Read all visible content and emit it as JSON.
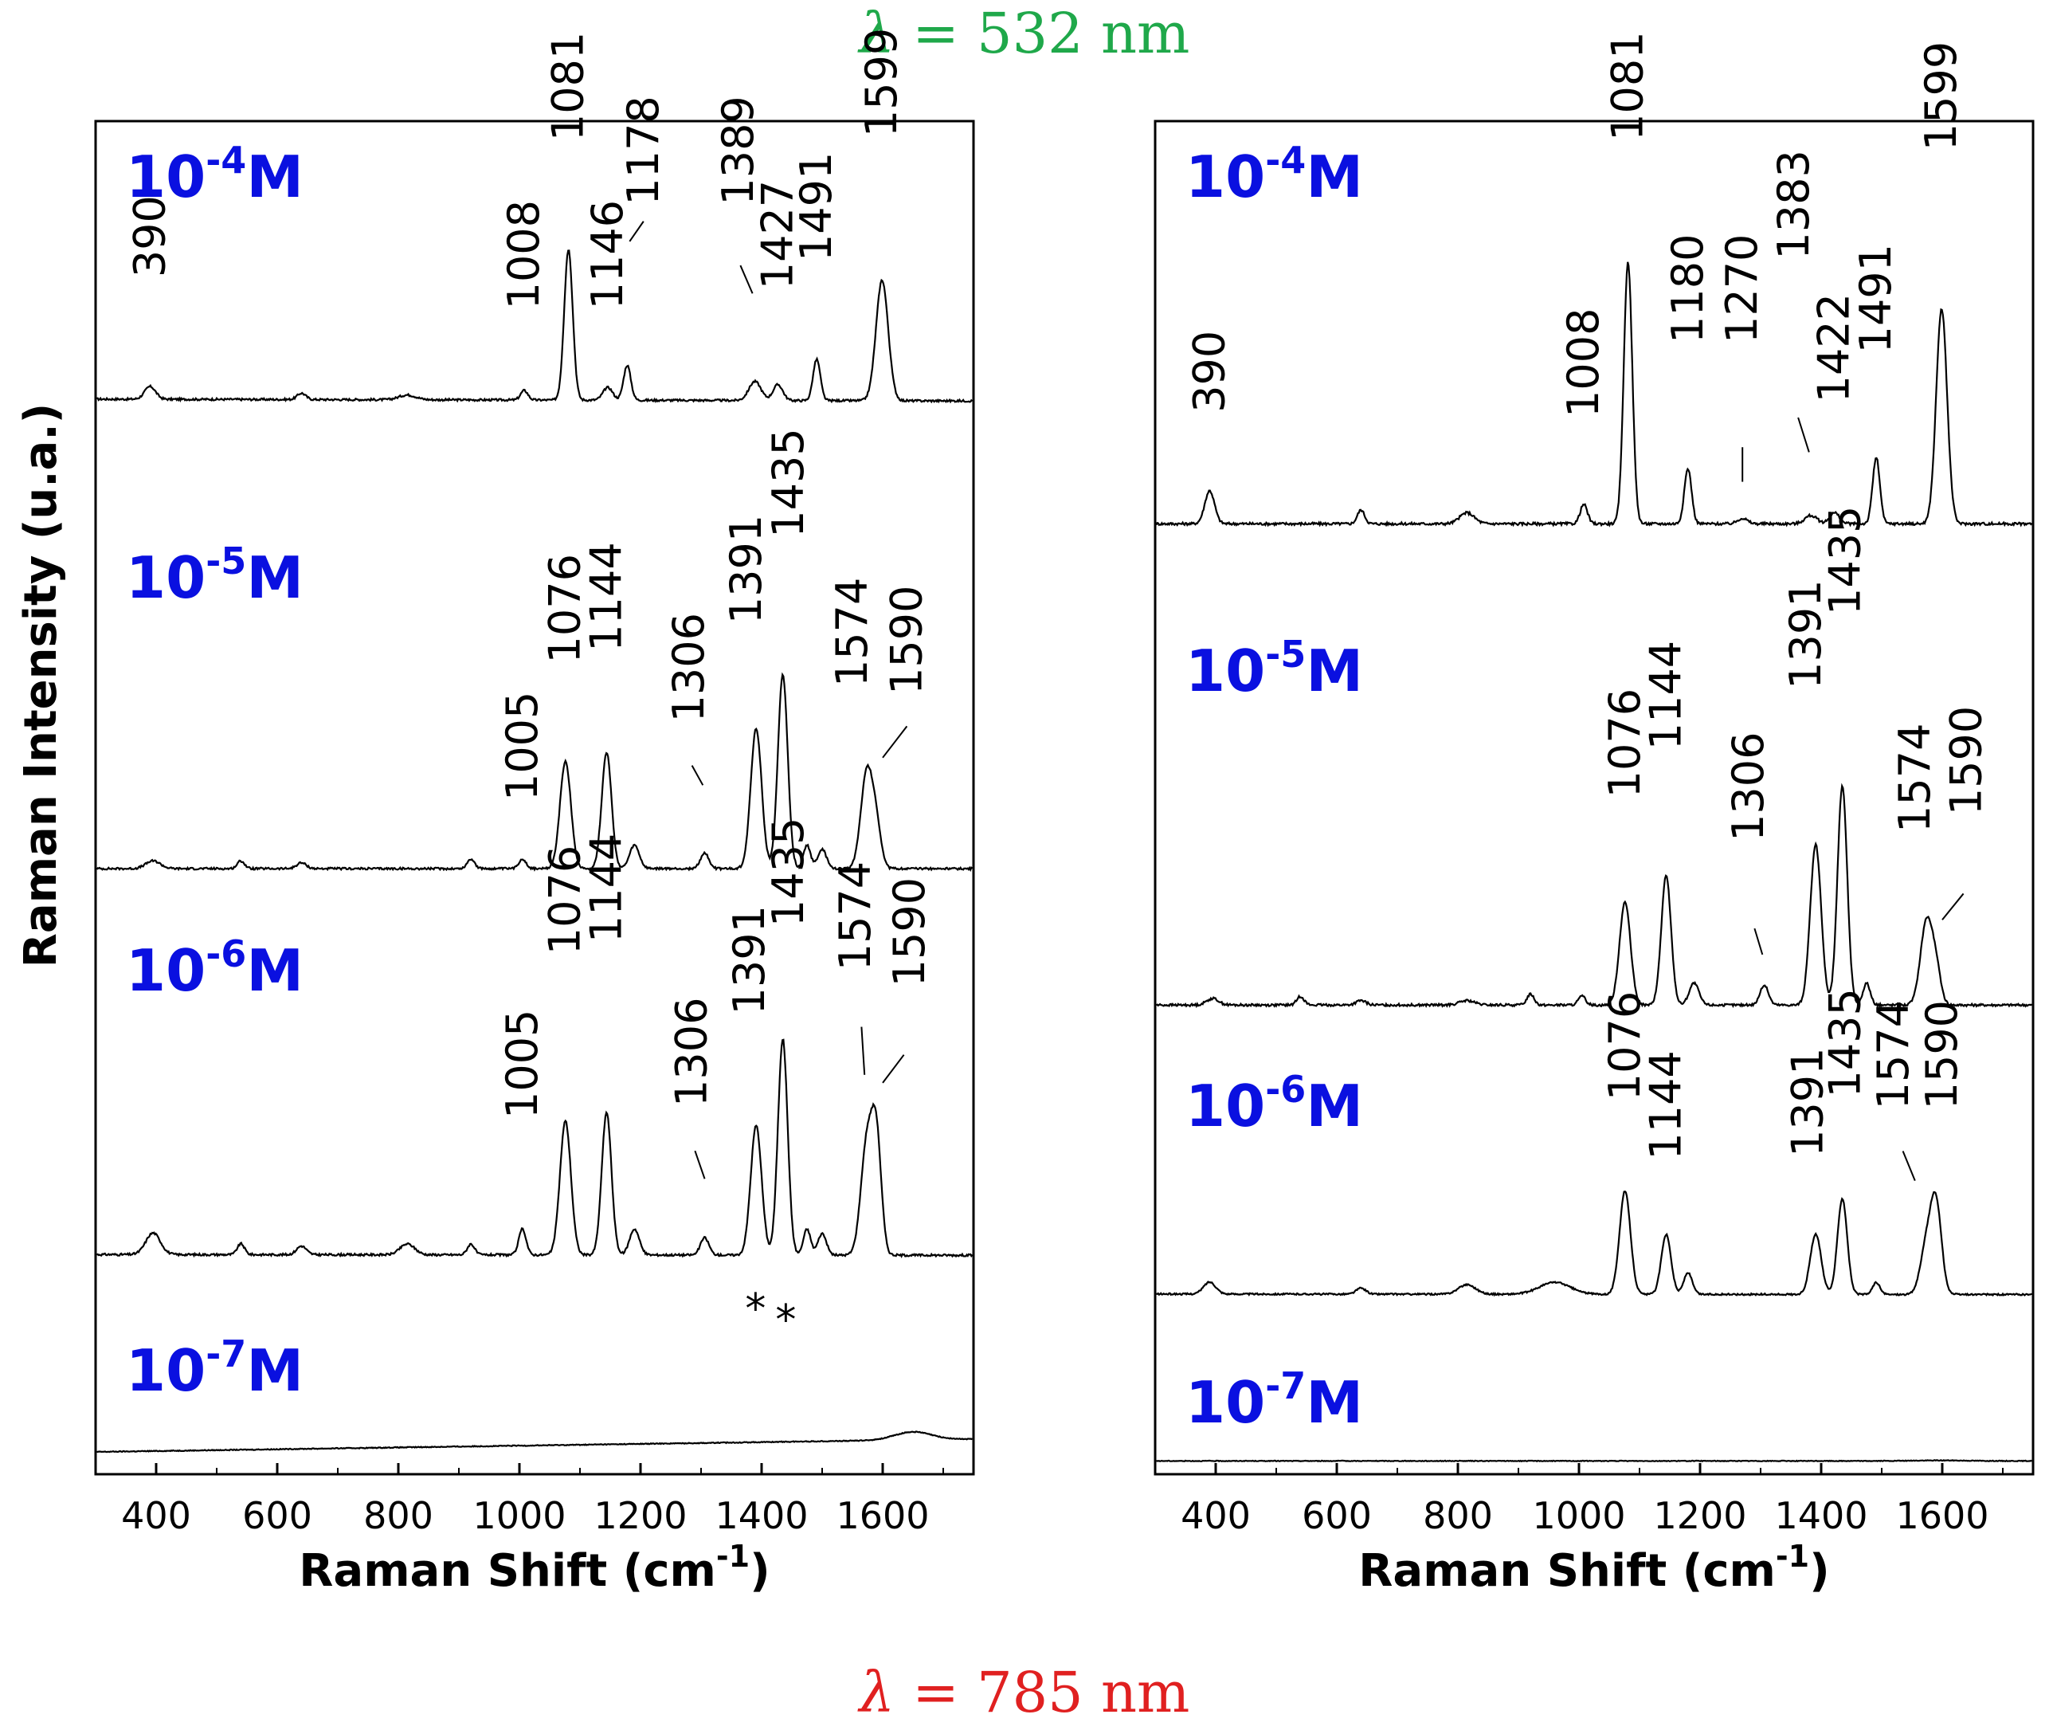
{
  "figure": {
    "top_label": {
      "lambda": "λ",
      "rest": " = 532 nm",
      "color": "#1fa84a"
    },
    "bottom_label": {
      "lambda": "λ",
      "rest": " = 785 nm",
      "color": "#e02020"
    },
    "ylabel": "Raman Intensity (u.a.)",
    "conc_color": "#0a10e0"
  },
  "chart_data": [
    {
      "type": "line",
      "panel": "left",
      "xlabel": "Raman Shift (cm",
      "xlabel_sup": "-1",
      "xlabel_end": ")",
      "xlim": [
        300,
        1750
      ],
      "xticks": [
        400,
        600,
        800,
        1000,
        1200,
        1400,
        1600
      ],
      "series": [
        {
          "label_base": "10",
          "label_exp": "-4",
          "label_unit": "M",
          "baseline": 0.56,
          "scale": 0.44,
          "slope": 0.05,
          "peaks": [
            [
              390,
              0.08,
              9
            ],
            [
              640,
              0.04,
              7
            ],
            [
              815,
              0.03,
              14
            ],
            [
              1008,
              0.06,
              6
            ],
            [
              1081,
              0.95,
              7
            ],
            [
              1146,
              0.08,
              8
            ],
            [
              1178,
              0.22,
              6
            ],
            [
              1389,
              0.12,
              10
            ],
            [
              1427,
              0.1,
              8
            ],
            [
              1491,
              0.26,
              6
            ],
            [
              1599,
              0.76,
              10
            ]
          ],
          "labels": [
            {
              "text": "390",
              "x": 390,
              "y": 0.61,
              "lead": []
            },
            {
              "text": "1008",
              "x": 1008,
              "y": 0.53,
              "lead": []
            },
            {
              "text": "1081",
              "x": 1081,
              "y": 0.95,
              "lead": []
            },
            {
              "text": "1146",
              "x": 1146,
              "y": 0.53,
              "lead": []
            },
            {
              "text": "1178",
              "x": 1205,
              "y": 0.79,
              "lead": [
                [
                  1205,
                  0.75
                ],
                [
                  1182,
                  0.7
                ]
              ]
            },
            {
              "text": "1389",
              "x": 1362,
              "y": 0.79,
              "lead": [
                [
                  1365,
                  0.64
                ],
                [
                  1385,
                  0.57
                ]
              ]
            },
            {
              "text": "1427",
              "x": 1427,
              "y": 0.58,
              "lead": []
            },
            {
              "text": "1491",
              "x": 1491,
              "y": 0.65,
              "lead": []
            },
            {
              "text": "1599",
              "x": 1599,
              "y": 0.96,
              "lead": []
            }
          ]
        },
        {
          "label_base": "10",
          "label_exp": "-5",
          "label_unit": "M",
          "baseline": 0.15,
          "scale": 0.55,
          "slope": 0.0,
          "peaks": [
            [
              395,
              0.04,
              12
            ],
            [
              540,
              0.04,
              6
            ],
            [
              640,
              0.03,
              8
            ],
            [
              920,
              0.05,
              6
            ],
            [
              1005,
              0.05,
              6
            ],
            [
              1076,
              0.55,
              9
            ],
            [
              1144,
              0.6,
              8
            ],
            [
              1190,
              0.12,
              8
            ],
            [
              1306,
              0.08,
              7
            ],
            [
              1391,
              0.72,
              9
            ],
            [
              1435,
              1.0,
              8
            ],
            [
              1475,
              0.12,
              6
            ],
            [
              1500,
              0.1,
              7
            ],
            [
              1574,
              0.5,
              10
            ],
            [
              1590,
              0.18,
              8
            ]
          ],
          "labels": [
            {
              "text": "1005",
              "x": 1005,
              "y": 0.29,
              "lead": []
            },
            {
              "text": "1076",
              "x": 1076,
              "y": 0.64,
              "lead": []
            },
            {
              "text": "1144",
              "x": 1144,
              "y": 0.67,
              "lead": []
            },
            {
              "text": "1306",
              "x": 1280,
              "y": 0.49,
              "lead": [
                [
                  1285,
                  0.38
                ],
                [
                  1303,
                  0.33
                ]
              ]
            },
            {
              "text": "1391",
              "x": 1375,
              "y": 0.74,
              "lead": []
            },
            {
              "text": "1435",
              "x": 1445,
              "y": 0.96,
              "lead": []
            },
            {
              "text": "1574",
              "x": 1550,
              "y": 0.58,
              "lead": []
            },
            {
              "text": "1590",
              "x": 1640,
              "y": 0.56,
              "lead": [
                [
                  1640,
                  0.48
                ],
                [
                  1600,
                  0.4
                ]
              ]
            }
          ]
        },
        {
          "label_base": "10",
          "label_exp": "-6",
          "label_unit": "M",
          "baseline": 0.22,
          "scale": 0.6,
          "slope": 0.02,
          "peaks": [
            [
              395,
              0.1,
              12
            ],
            [
              540,
              0.05,
              6
            ],
            [
              640,
              0.04,
              8
            ],
            [
              815,
              0.05,
              12
            ],
            [
              920,
              0.05,
              6
            ],
            [
              1005,
              0.12,
              6
            ],
            [
              1076,
              0.62,
              9
            ],
            [
              1144,
              0.66,
              8
            ],
            [
              1190,
              0.12,
              8
            ],
            [
              1306,
              0.08,
              7
            ],
            [
              1391,
              0.6,
              9
            ],
            [
              1435,
              1.0,
              8
            ],
            [
              1475,
              0.12,
              6
            ],
            [
              1500,
              0.1,
              7
            ],
            [
              1574,
              0.52,
              10
            ],
            [
              1590,
              0.5,
              8
            ]
          ],
          "labels": [
            {
              "text": "1005",
              "x": 1005,
              "y": 0.49,
              "lead": []
            },
            {
              "text": "1076",
              "x": 1076,
              "y": 0.9,
              "lead": []
            },
            {
              "text": "1144",
              "x": 1144,
              "y": 0.93,
              "lead": []
            },
            {
              "text": "1306",
              "x": 1285,
              "y": 0.52,
              "lead": [
                [
                  1290,
                  0.41
                ],
                [
                  1306,
                  0.34
                ]
              ]
            },
            {
              "text": "1391",
              "x": 1380,
              "y": 0.75,
              "lead": []
            },
            {
              "text": "1435",
              "x": 1445,
              "y": 0.97,
              "lead": []
            },
            {
              "text": "1574",
              "x": 1555,
              "y": 0.86,
              "lead": [
                [
                  1565,
                  0.72
                ],
                [
                  1570,
                  0.6
                ]
              ]
            },
            {
              "text": "1590",
              "x": 1645,
              "y": 0.82,
              "lead": [
                [
                  1635,
                  0.65
                ],
                [
                  1600,
                  0.58
                ]
              ]
            }
          ]
        },
        {
          "label_base": "10",
          "label_exp": "-7",
          "label_unit": "M",
          "baseline": 0.38,
          "scale": 0.2,
          "slope": -0.9,
          "peaks": [
            [
              1650,
              0.28,
              30
            ]
          ],
          "labels": [
            {
              "text": "*",
              "x": 1390,
              "y": 0.95,
              "lead": []
            },
            {
              "text": "*",
              "x": 1440,
              "y": 0.88,
              "lead": []
            }
          ]
        }
      ]
    },
    {
      "type": "line",
      "panel": "right",
      "xlabel": "Raman Shift (cm",
      "xlabel_sup": "-1",
      "xlabel_end": ")",
      "xlim": [
        300,
        1750
      ],
      "xticks": [
        400,
        600,
        800,
        1000,
        1200,
        1400,
        1600
      ],
      "series": [
        {
          "label_base": "10",
          "label_exp": "-4",
          "label_unit": "M",
          "baseline": 0.3,
          "scale": 0.62,
          "slope": 0.0,
          "peaks": [
            [
              390,
              0.12,
              8
            ],
            [
              640,
              0.05,
              6
            ],
            [
              815,
              0.04,
              12
            ],
            [
              1008,
              0.07,
              6
            ],
            [
              1081,
              0.95,
              7
            ],
            [
              1180,
              0.2,
              6
            ],
            [
              1270,
              0.02,
              8
            ],
            [
              1383,
              0.03,
              10
            ],
            [
              1422,
              0.04,
              8
            ],
            [
              1491,
              0.24,
              6
            ],
            [
              1599,
              0.78,
              9
            ]
          ],
          "labels": [
            {
              "text": "390",
              "x": 390,
              "y": 0.41,
              "lead": []
            },
            {
              "text": "1008",
              "x": 1008,
              "y": 0.4,
              "lead": []
            },
            {
              "text": "1081",
              "x": 1081,
              "y": 0.96,
              "lead": []
            },
            {
              "text": "1180",
              "x": 1180,
              "y": 0.55,
              "lead": []
            },
            {
              "text": "1270",
              "x": 1270,
              "y": 0.55,
              "lead": [
                [
                  1270,
                  0.34
                ],
                [
                  1270,
                  0.27
                ]
              ]
            },
            {
              "text": "1383",
              "x": 1355,
              "y": 0.72,
              "lead": [
                [
                  1362,
                  0.4
                ],
                [
                  1380,
                  0.33
                ]
              ]
            },
            {
              "text": "1422",
              "x": 1422,
              "y": 0.43,
              "lead": []
            },
            {
              "text": "1491",
              "x": 1491,
              "y": 0.53,
              "lead": []
            },
            {
              "text": "1599",
              "x": 1599,
              "y": 0.94,
              "lead": []
            }
          ]
        },
        {
          "label_base": "10",
          "label_exp": "-5",
          "label_unit": "M",
          "baseline": 0.12,
          "scale": 0.56,
          "slope": 0.0,
          "peaks": [
            [
              395,
              0.03,
              10
            ],
            [
              540,
              0.04,
              6
            ],
            [
              640,
              0.02,
              8
            ],
            [
              815,
              0.02,
              12
            ],
            [
              920,
              0.05,
              6
            ],
            [
              1005,
              0.04,
              6
            ],
            [
              1076,
              0.47,
              9
            ],
            [
              1144,
              0.59,
              8
            ],
            [
              1190,
              0.1,
              8
            ],
            [
              1306,
              0.09,
              7
            ],
            [
              1391,
              0.73,
              9
            ],
            [
              1435,
              1.0,
              8
            ],
            [
              1475,
              0.1,
              6
            ],
            [
              1574,
              0.38,
              10
            ],
            [
              1590,
              0.14,
              8
            ]
          ],
          "labels": [
            {
              "text": "1076",
              "x": 1076,
              "y": 0.58,
              "lead": []
            },
            {
              "text": "1144",
              "x": 1144,
              "y": 0.69,
              "lead": []
            },
            {
              "text": "1306",
              "x": 1280,
              "y": 0.48,
              "lead": [
                [
                  1290,
                  0.28
                ],
                [
                  1303,
                  0.22
                ]
              ]
            },
            {
              "text": "1391",
              "x": 1375,
              "y": 0.83,
              "lead": []
            },
            {
              "text": "1435",
              "x": 1440,
              "y": 1.0,
              "lead": []
            },
            {
              "text": "1574",
              "x": 1555,
              "y": 0.5,
              "lead": []
            },
            {
              "text": "1590",
              "x": 1640,
              "y": 0.54,
              "lead": [
                [
                  1635,
                  0.36
                ],
                [
                  1600,
                  0.3
                ]
              ]
            }
          ]
        },
        {
          "label_base": "10",
          "label_exp": "-6",
          "label_unit": "M",
          "baseline": 0.28,
          "scale": 0.45,
          "slope": 0.02,
          "peaks": [
            [
              390,
              0.1,
              10
            ],
            [
              640,
              0.05,
              8
            ],
            [
              815,
              0.08,
              14
            ],
            [
              960,
              0.1,
              25
            ],
            [
              1076,
              0.86,
              9
            ],
            [
              1144,
              0.5,
              8
            ],
            [
              1180,
              0.18,
              7
            ],
            [
              1391,
              0.5,
              9
            ],
            [
              1435,
              0.8,
              8
            ],
            [
              1491,
              0.1,
              6
            ],
            [
              1574,
              0.4,
              10
            ],
            [
              1590,
              0.72,
              9
            ]
          ],
          "labels": [
            {
              "text": "1076",
              "x": 1076,
              "y": 0.83,
              "lead": []
            },
            {
              "text": "1144",
              "x": 1144,
              "y": 0.63,
              "lead": []
            },
            {
              "text": "1391",
              "x": 1378,
              "y": 0.64,
              "lead": []
            },
            {
              "text": "1435",
              "x": 1440,
              "y": 0.84,
              "lead": []
            },
            {
              "text": "1574",
              "x": 1520,
              "y": 0.8,
              "lead": [
                [
                  1535,
                  0.66
                ],
                [
                  1555,
                  0.56
                ]
              ]
            },
            {
              "text": "1590",
              "x": 1600,
              "y": 0.8,
              "lead": []
            }
          ]
        },
        {
          "label_base": "10",
          "label_exp": "-7",
          "label_unit": "M",
          "baseline": 0.12,
          "scale": 0.1,
          "slope": 0.0,
          "peaks": [
            [
              1600,
              0.05,
              40
            ]
          ],
          "labels": []
        }
      ]
    }
  ]
}
